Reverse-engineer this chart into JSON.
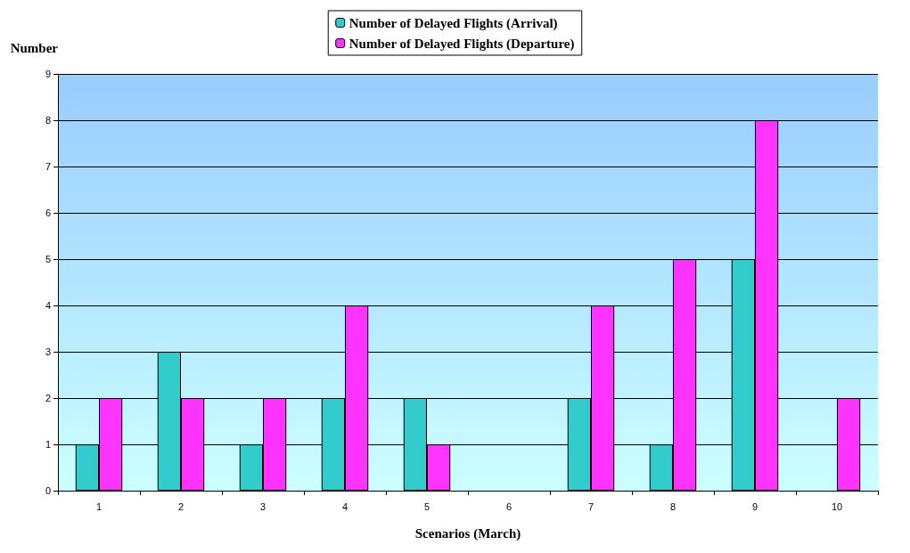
{
  "chart_data": {
    "type": "bar",
    "xlabel": "Scenarios (March)",
    "ylabel": "Number",
    "categories": [
      "1",
      "2",
      "3",
      "4",
      "5",
      "6",
      "7",
      "8",
      "9",
      "10"
    ],
    "series": [
      {
        "name": "Number of Delayed Flights (Arrival)",
        "color": "#33cccc",
        "values": [
          1,
          3,
          1,
          2,
          2,
          0,
          2,
          1,
          5,
          0
        ]
      },
      {
        "name": "Number of Delayed Flights (Departure)",
        "color": "#ff33ff",
        "values": [
          2,
          2,
          2,
          4,
          1,
          0,
          4,
          5,
          8,
          2
        ]
      }
    ],
    "ylim": [
      0,
      9
    ],
    "yticks": [
      0,
      1,
      2,
      3,
      4,
      5,
      6,
      7,
      8,
      9
    ],
    "grid": "y",
    "legend": "top"
  }
}
